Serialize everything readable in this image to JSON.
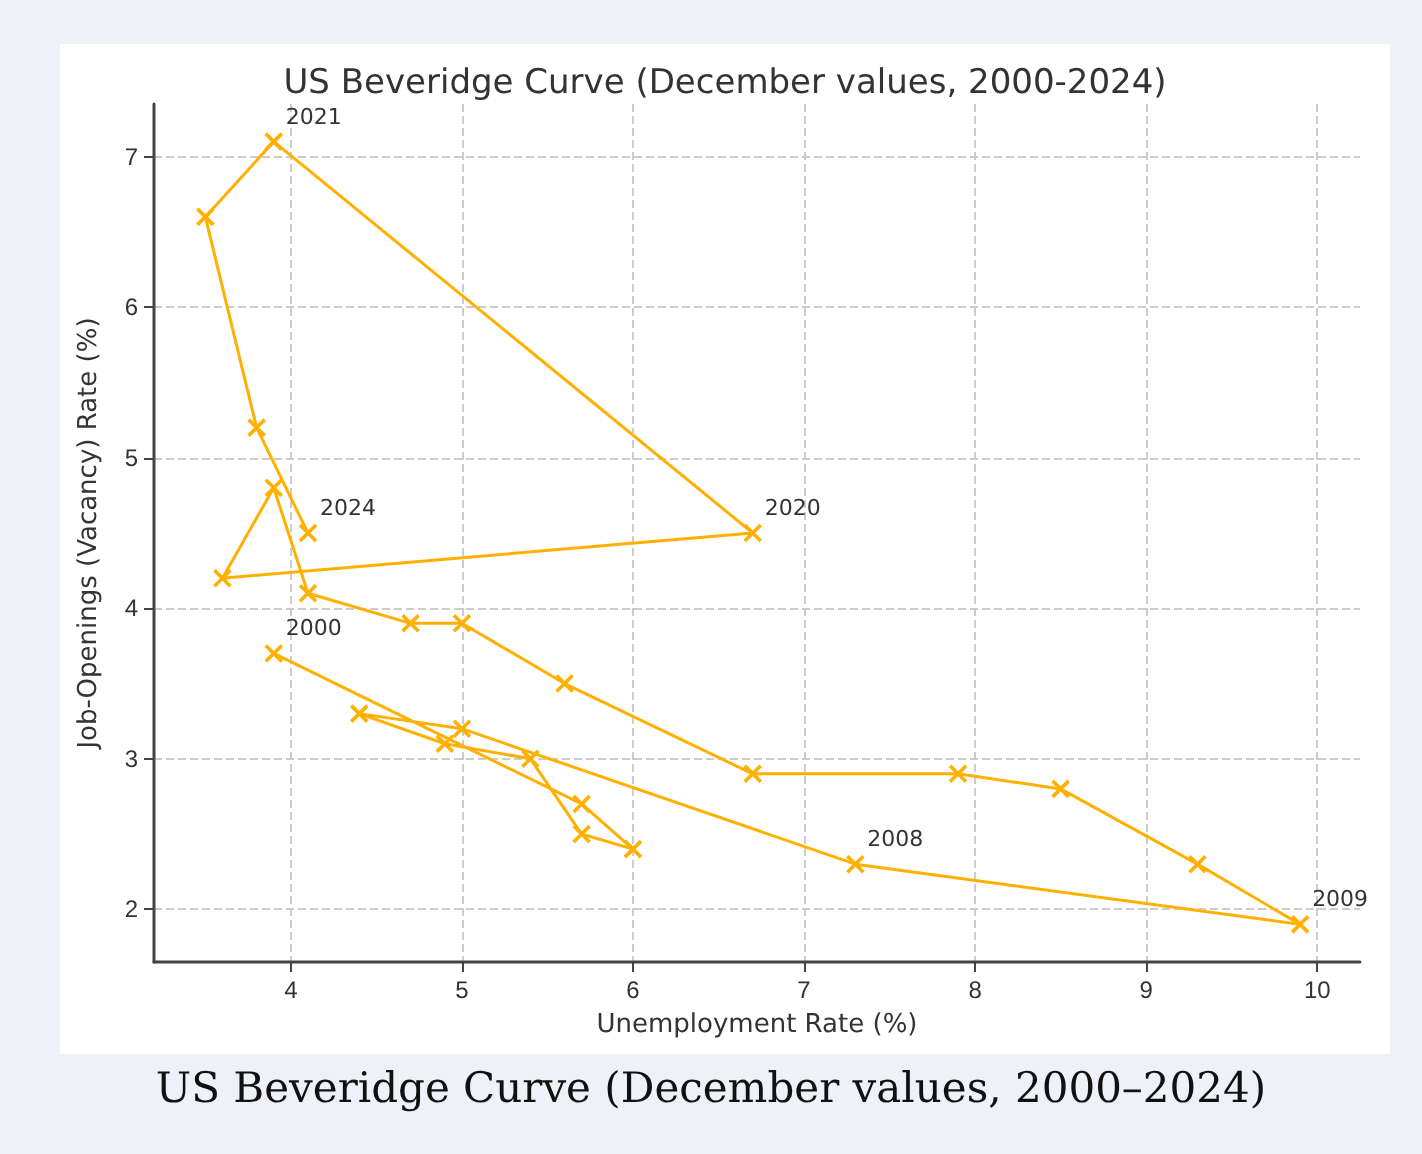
{
  "chart_data": {
    "type": "line",
    "title": "US Beveridge Curve (December values, 2000-2024)",
    "xlabel": "Unemployment Rate (%)",
    "ylabel": "Job-Openings (Vacancy) Rate (%)",
    "x": [
      3.9,
      5.7,
      6.0,
      5.7,
      5.4,
      4.9,
      4.4,
      5.0,
      7.3,
      9.9,
      9.3,
      8.5,
      7.9,
      6.7,
      5.6,
      5.0,
      4.7,
      4.1,
      3.9,
      3.6,
      6.7,
      3.9,
      3.5,
      3.8,
      4.1
    ],
    "series": [
      {
        "color": "#ffb000",
        "values": [
          3.7,
          2.7,
          2.4,
          2.5,
          3.0,
          3.1,
          3.3,
          3.2,
          2.3,
          1.9,
          2.3,
          2.8,
          2.9,
          2.9,
          3.5,
          3.9,
          3.9,
          4.1,
          4.8,
          4.2,
          4.5,
          7.1,
          6.6,
          5.2,
          4.5
        ]
      }
    ],
    "xlim": [
      3.2,
      10.25
    ],
    "ylim": [
      1.65,
      7.35
    ],
    "xticks": [
      4,
      5,
      6,
      7,
      8,
      9,
      10
    ],
    "yticks": [
      2,
      3,
      4,
      5,
      6,
      7
    ],
    "grid": true,
    "marker": "cross",
    "line_style": "solid",
    "annotations": [
      {
        "text": "2000",
        "x": 3.9,
        "y": 3.7
      },
      {
        "text": "2008",
        "x": 7.3,
        "y": 2.3
      },
      {
        "text": "2009",
        "x": 9.9,
        "y": 1.9
      },
      {
        "text": "2020",
        "x": 6.7,
        "y": 4.5
      },
      {
        "text": "2021",
        "x": 3.9,
        "y": 7.1
      },
      {
        "text": "2024",
        "x": 4.1,
        "y": 4.5
      },
      "US Beveridge Curve (December values, 2000–2024)"
    ]
  }
}
